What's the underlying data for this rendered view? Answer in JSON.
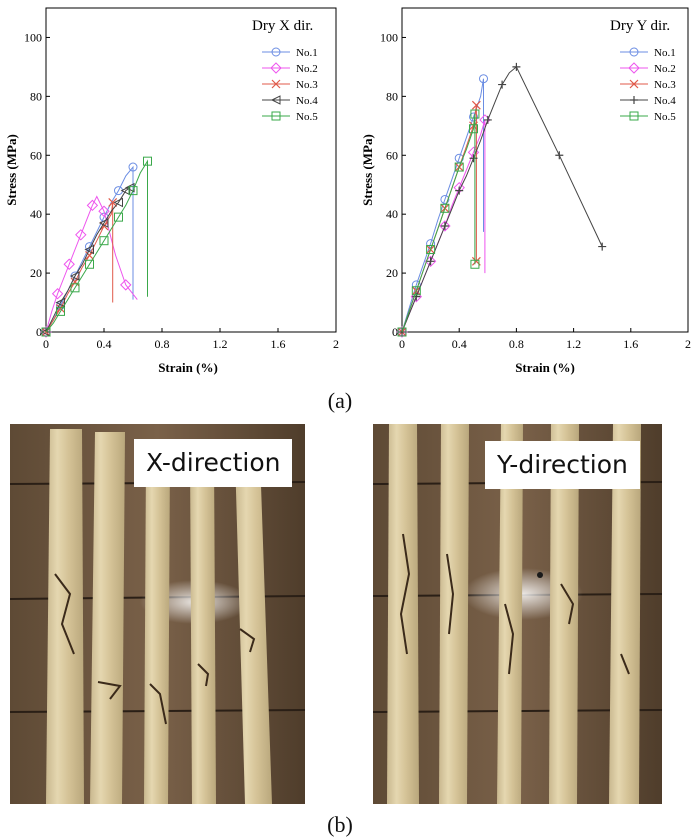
{
  "captions": {
    "a": "(a)",
    "b": "(b)"
  },
  "photos": {
    "left_label": "X-direction",
    "right_label": "Y-direction"
  },
  "chart_data": [
    {
      "type": "line",
      "title": "Dry X dir.",
      "xlabel": "Strain (%)",
      "ylabel": "Stress (MPa)",
      "xlim": [
        0,
        2
      ],
      "ylim": [
        0,
        110
      ],
      "xticks": [
        "0",
        "0.4",
        "0.8",
        "1.2",
        "1.6",
        "2"
      ],
      "yticks": [
        "0",
        "20",
        "40",
        "60",
        "80",
        "100"
      ],
      "legend_position": "top-right",
      "series": [
        {
          "name": "No.1",
          "color": "#6b8de3",
          "marker": "circle",
          "x": [
            0,
            0.05,
            0.1,
            0.15,
            0.2,
            0.25,
            0.3,
            0.35,
            0.4,
            0.45,
            0.5,
            0.55,
            0.6,
            0.6
          ],
          "y": [
            0,
            4,
            9,
            14,
            19,
            24,
            29,
            34,
            39,
            44,
            48,
            53,
            56,
            11
          ]
        },
        {
          "name": "No.2",
          "color": "#ee55ee",
          "marker": "diamond",
          "x": [
            0,
            0.04,
            0.08,
            0.12,
            0.16,
            0.2,
            0.24,
            0.28,
            0.32,
            0.35,
            0.4,
            0.48,
            0.55,
            0.63
          ],
          "y": [
            0,
            7,
            13,
            18,
            23,
            28,
            33,
            38,
            43,
            46,
            41,
            26,
            16,
            11
          ]
        },
        {
          "name": "No.3",
          "color": "#e05a4a",
          "marker": "cross",
          "x": [
            0,
            0.05,
            0.1,
            0.15,
            0.2,
            0.25,
            0.3,
            0.35,
            0.4,
            0.45,
            0.46,
            0.46
          ],
          "y": [
            0,
            4,
            8,
            13,
            17,
            22,
            26,
            31,
            36,
            40,
            44,
            10
          ]
        },
        {
          "name": "No.4",
          "color": "#444444",
          "marker": "triangle",
          "x": [
            0,
            0.05,
            0.1,
            0.15,
            0.2,
            0.25,
            0.3,
            0.35,
            0.4,
            0.45,
            0.5,
            0.55,
            0.58
          ],
          "y": [
            0,
            5,
            10,
            14,
            19,
            23,
            28,
            33,
            37,
            41,
            44,
            48,
            49
          ]
        },
        {
          "name": "No.5",
          "color": "#3aa84a",
          "marker": "square",
          "x": [
            0,
            0.05,
            0.1,
            0.15,
            0.2,
            0.25,
            0.3,
            0.35,
            0.4,
            0.45,
            0.5,
            0.55,
            0.6,
            0.65,
            0.7,
            0.7
          ],
          "y": [
            0,
            3,
            7,
            11,
            15,
            19,
            23,
            27,
            31,
            35,
            39,
            43,
            48,
            54,
            58,
            12
          ]
        }
      ]
    },
    {
      "type": "line",
      "title": "Dry Y dir.",
      "xlabel": "Strain (%)",
      "ylabel": "Stress (MPa)",
      "xlim": [
        0,
        2
      ],
      "ylim": [
        0,
        110
      ],
      "xticks": [
        "0",
        "0.4",
        "0.8",
        "1.2",
        "1.6",
        "2"
      ],
      "yticks": [
        "0",
        "20",
        "40",
        "60",
        "80",
        "100"
      ],
      "legend_position": "top-right",
      "series": [
        {
          "name": "No.1",
          "color": "#6b8de3",
          "marker": "circle",
          "x": [
            0,
            0.05,
            0.1,
            0.15,
            0.2,
            0.25,
            0.3,
            0.35,
            0.4,
            0.45,
            0.5,
            0.55,
            0.57,
            0.57
          ],
          "y": [
            0,
            8,
            16,
            23,
            30,
            38,
            45,
            52,
            59,
            66,
            73,
            80,
            86,
            34
          ]
        },
        {
          "name": "No.2",
          "color": "#ee55ee",
          "marker": "diamond",
          "x": [
            0,
            0.05,
            0.1,
            0.15,
            0.2,
            0.25,
            0.3,
            0.35,
            0.4,
            0.45,
            0.5,
            0.55,
            0.58,
            0.58
          ],
          "y": [
            0,
            6,
            12,
            18,
            24,
            30,
            36,
            43,
            49,
            55,
            61,
            67,
            72,
            20
          ]
        },
        {
          "name": "No.3",
          "color": "#e05a4a",
          "marker": "cross",
          "x": [
            0,
            0.05,
            0.1,
            0.15,
            0.2,
            0.25,
            0.3,
            0.35,
            0.4,
            0.45,
            0.5,
            0.52,
            0.52
          ],
          "y": [
            0,
            7,
            14,
            21,
            28,
            35,
            42,
            49,
            56,
            63,
            70,
            77,
            24
          ]
        },
        {
          "name": "No.4",
          "color": "#444444",
          "marker": "plus",
          "x": [
            0,
            0.05,
            0.1,
            0.15,
            0.2,
            0.25,
            0.3,
            0.35,
            0.4,
            0.45,
            0.5,
            0.55,
            0.6,
            0.65,
            0.7,
            0.75,
            0.8,
            1.1,
            1.4
          ],
          "y": [
            0,
            6,
            12,
            18,
            24,
            30,
            36,
            42,
            48,
            53,
            59,
            65,
            72,
            78,
            84,
            88,
            90,
            60,
            29
          ]
        },
        {
          "name": "No.5",
          "color": "#3aa84a",
          "marker": "square",
          "x": [
            0,
            0.05,
            0.1,
            0.15,
            0.2,
            0.25,
            0.3,
            0.35,
            0.4,
            0.45,
            0.5,
            0.51,
            0.51
          ],
          "y": [
            0,
            7,
            14,
            21,
            28,
            35,
            42,
            49,
            56,
            62,
            69,
            74,
            23
          ]
        }
      ]
    }
  ]
}
